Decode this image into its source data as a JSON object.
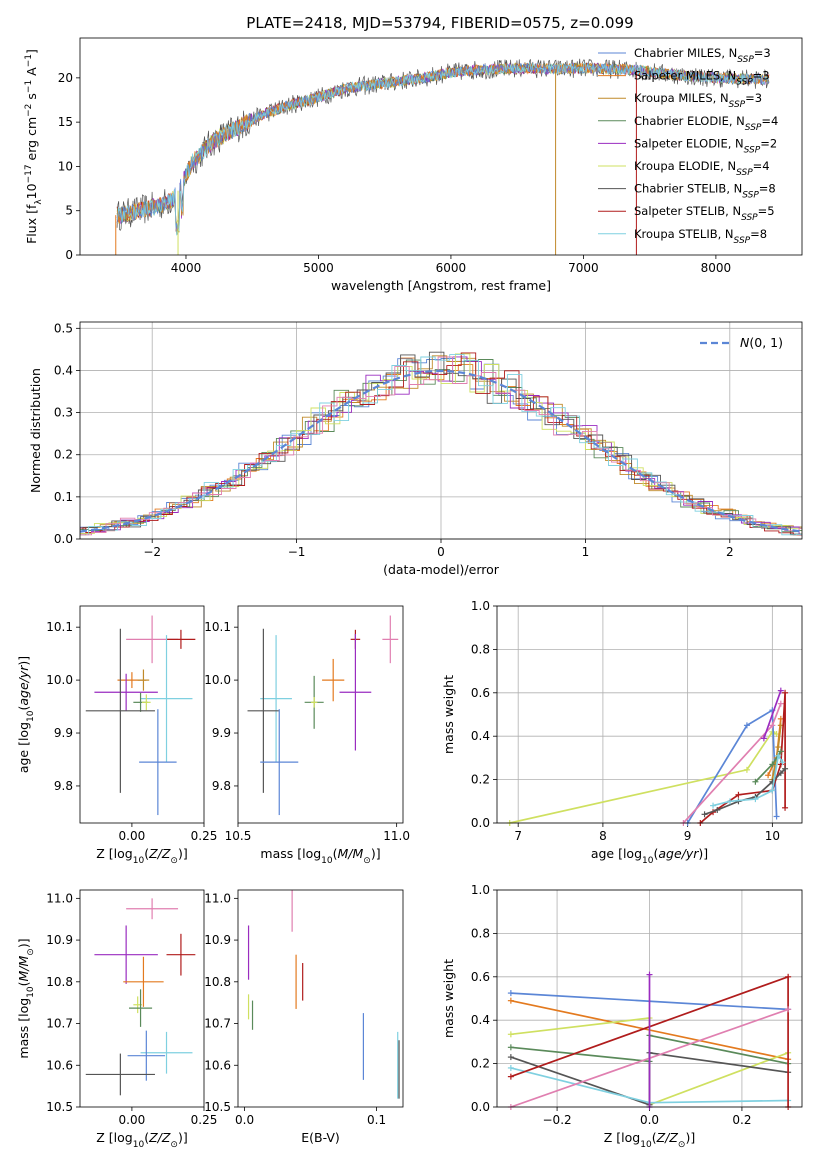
{
  "figure": {
    "title": "PLATE=2418, MJD=53794, FIBERID=0575, z=0.099"
  },
  "colors": {
    "chabrier_miles": "#5b86d6",
    "salpeter_miles": "#e37a1f",
    "kroupa_miles": "#c08a2a",
    "chabrier_elodie": "#5a8a5a",
    "salpeter_elodie": "#9a2cc0",
    "kroupa_elodie": "#cfe060",
    "chabrier_stelib": "#555555",
    "salpeter_stelib": "#b01c1c",
    "kroupa_stelib": "#7fd0e0",
    "pink": "#e07fb0",
    "grid": "#b0b0b0"
  },
  "chart_data": [
    {
      "id": "spectrum",
      "type": "line",
      "xlabel": "wavelength [Angstrom, rest frame]",
      "ylabel": "Flux [f_λ10^{-17} erg cm^{-2} s^{-1} A^{-1}]",
      "xlim": [
        3200,
        8650
      ],
      "ylim": [
        0,
        24.5
      ],
      "xticks": [
        4000,
        5000,
        6000,
        7000,
        8000
      ],
      "yticks": [
        0,
        5,
        10,
        15,
        20
      ],
      "grid": false,
      "legend_position": "top-right",
      "legend": [
        {
          "name": "Chabrier MILES",
          "nssp": "3"
        },
        {
          "name": "Salpeter MILES",
          "nssp": "3"
        },
        {
          "name": "Kroupa MILES",
          "nssp": "3"
        },
        {
          "name": "Chabrier ELODIE",
          "nssp": "4"
        },
        {
          "name": "Salpeter ELODIE",
          "nssp": "2"
        },
        {
          "name": "Kroupa ELODIE",
          "nssp": "4"
        },
        {
          "name": "Chabrier STELIB",
          "nssp": "8"
        },
        {
          "name": "Salpeter STELIB",
          "nssp": "5"
        },
        {
          "name": "Kroupa STELIB",
          "nssp": "8"
        }
      ],
      "continuum": {
        "wavelength": [
          3500,
          3650,
          3800,
          3900,
          3950,
          4050,
          4200,
          4400,
          4600,
          4800,
          5000,
          5200,
          5400,
          5600,
          5800,
          6000,
          6200,
          6400,
          6600,
          6800,
          7000,
          7200,
          7400,
          7600,
          7800,
          8000,
          8200,
          8400
        ],
        "flux": [
          4.5,
          5.0,
          5.6,
          6.3,
          7.5,
          10.5,
          12.8,
          14.5,
          16.0,
          17.0,
          17.8,
          18.8,
          19.2,
          19.6,
          20.0,
          20.6,
          20.9,
          21.0,
          21.1,
          21.0,
          21.1,
          21.0,
          20.9,
          20.5,
          20.2,
          20.0,
          19.9,
          19.8
        ]
      }
    },
    {
      "id": "residual_hist",
      "type": "line",
      "xlabel": "(data-model)/error",
      "ylabel": "Normed distribution",
      "xlim": [
        -2.5,
        2.5
      ],
      "ylim": [
        0,
        0.515
      ],
      "xticks": [
        -2,
        -1,
        0,
        1,
        2
      ],
      "yticks": [
        0.0,
        0.1,
        0.2,
        0.3,
        0.4,
        0.5
      ],
      "grid": true,
      "legend_position": "top-right",
      "legend": [
        "N(0,1)"
      ]
    },
    {
      "id": "age_vs_Z",
      "type": "scatter",
      "xlabel": "Z [log10(Z/Z⊙)]",
      "ylabel": "age [log10(age/yr)]",
      "xlim": [
        -0.18,
        0.25
      ],
      "ylim": [
        9.73,
        10.14
      ],
      "xticks": [
        0.0,
        0.25
      ],
      "xticklabels": [
        "0.00",
        "0.25"
      ],
      "yticks": [
        9.8,
        9.9,
        10.0,
        10.1
      ],
      "grid": false,
      "points": [
        {
          "c": "pink",
          "x": 0.07,
          "y": 10.077,
          "xe": 0.09,
          "ye": 0.045
        },
        {
          "c": "salpeter_stelib",
          "x": 0.17,
          "y": 10.077,
          "xe": 0.05,
          "ye": 0.018
        },
        {
          "c": "salpeter_miles",
          "x": 0.0,
          "y": 10.0,
          "xe": 0.05,
          "ye": 0.015
        },
        {
          "c": "kroupa_miles",
          "x": 0.04,
          "y": 10.0,
          "xe": 0.02,
          "ye": 0.02
        },
        {
          "c": "salpeter_elodie",
          "x": -0.02,
          "y": 9.977,
          "xe": 0.11,
          "ye": 0.035
        },
        {
          "c": "kroupa_stelib",
          "x": 0.12,
          "y": 9.965,
          "xe": 0.09,
          "ye": 0.12
        },
        {
          "c": "chabrier_elodie",
          "x": 0.03,
          "y": 9.958,
          "xe": 0.025,
          "ye": 0.018
        },
        {
          "c": "kroupa_elodie",
          "x": 0.05,
          "y": 9.958,
          "xe": 0.015,
          "ye": 0.015
        },
        {
          "c": "chabrier_stelib",
          "x": -0.04,
          "y": 9.942,
          "xe": 0.12,
          "ye": 0.155
        },
        {
          "c": "chabrier_miles",
          "x": 0.09,
          "y": 9.845,
          "xe": 0.065,
          "ye": 0.1
        }
      ]
    },
    {
      "id": "age_vs_mass",
      "type": "scatter",
      "xlabel": "mass [log10(M/M⊙)]",
      "ylabel": "",
      "xlim": [
        10.5,
        11.02
      ],
      "ylim": [
        9.73,
        10.14
      ],
      "xticks": [
        10.5,
        11.0
      ],
      "xticklabels": [
        "10.5",
        "11.0"
      ],
      "yticks": [
        9.8,
        9.9,
        10.0,
        10.1
      ],
      "grid": false,
      "points": [
        {
          "c": "pink",
          "x": 10.98,
          "y": 10.077,
          "xe": 0.025,
          "ye": 0.045
        },
        {
          "c": "salpeter_stelib",
          "x": 10.87,
          "y": 10.077,
          "xe": 0.015,
          "ye": 0.018
        },
        {
          "c": "salpeter_miles",
          "x": 10.8,
          "y": 10.0,
          "xe": 0.035,
          "ye": 0.04
        },
        {
          "c": "salpeter_elodie",
          "x": 10.87,
          "y": 9.977,
          "xe": 0.05,
          "ye": 0.11
        },
        {
          "c": "kroupa_stelib",
          "x": 10.62,
          "y": 9.965,
          "xe": 0.05,
          "ye": 0.12
        },
        {
          "c": "chabrier_elodie",
          "x": 10.74,
          "y": 9.958,
          "xe": 0.03,
          "ye": 0.05
        },
        {
          "c": "kroupa_elodie",
          "x": 10.74,
          "y": 9.958,
          "xe": 0.01,
          "ye": 0.01
        },
        {
          "c": "chabrier_stelib",
          "x": 10.58,
          "y": 9.942,
          "xe": 0.05,
          "ye": 0.155
        },
        {
          "c": "chabrier_miles",
          "x": 10.63,
          "y": 9.845,
          "xe": 0.06,
          "ye": 0.1
        }
      ]
    },
    {
      "id": "weight_vs_age",
      "type": "line",
      "xlabel": "age [log10(age/yr)]",
      "ylabel": "mass weight",
      "xlim": [
        6.75,
        10.35
      ],
      "ylim": [
        0,
        1.0
      ],
      "xticks": [
        7,
        8,
        9,
        10
      ],
      "yticks": [
        0.0,
        0.2,
        0.4,
        0.6,
        0.8,
        1.0
      ],
      "grid": true,
      "series": [
        {
          "c": "kroupa_elodie",
          "x": [
            6.9,
            9.7,
            10.0,
            10.05
          ],
          "y": [
            0.0,
            0.245,
            0.42,
            0.41
          ]
        },
        {
          "c": "chabrier_miles",
          "x": [
            9.0,
            9.7,
            10.0,
            10.05
          ],
          "y": [
            0.0,
            0.45,
            0.52,
            0.03
          ]
        },
        {
          "c": "pink",
          "x": [
            8.95,
            10.0,
            10.1
          ],
          "y": [
            0.0,
            0.45,
            0.55
          ]
        },
        {
          "c": "salpeter_elodie",
          "x": [
            9.9,
            10.1
          ],
          "y": [
            0.39,
            0.61
          ]
        },
        {
          "c": "salpeter_miles",
          "x": [
            9.95,
            10.05,
            10.1
          ],
          "y": [
            0.22,
            0.3,
            0.48
          ]
        },
        {
          "c": "kroupa_miles",
          "x": [
            10.0,
            10.07,
            10.1
          ],
          "y": [
            0.2,
            0.35,
            0.45
          ]
        },
        {
          "c": "salpeter_stelib",
          "x": [
            9.15,
            9.3,
            9.6,
            10.0,
            10.1,
            10.15,
            10.15
          ],
          "y": [
            0.0,
            0.05,
            0.13,
            0.15,
            0.27,
            0.6,
            0.07
          ]
        },
        {
          "c": "chabrier_stelib",
          "x": [
            9.2,
            9.35,
            9.6,
            9.8,
            10.0,
            10.1,
            10.15
          ],
          "y": [
            0.04,
            0.06,
            0.1,
            0.12,
            0.19,
            0.23,
            0.25
          ]
        },
        {
          "c": "chabrier_elodie",
          "x": [
            9.8,
            10.0,
            10.1
          ],
          "y": [
            0.19,
            0.27,
            0.33
          ]
        },
        {
          "c": "kroupa_stelib",
          "x": [
            9.3,
            9.5,
            9.8,
            10.0,
            10.07,
            10.12
          ],
          "y": [
            0.08,
            0.1,
            0.11,
            0.15,
            0.31,
            0.28
          ]
        }
      ]
    },
    {
      "id": "mass_vs_Z",
      "type": "scatter",
      "xlabel": "Z [log10(Z/Z⊙)]",
      "ylabel": "mass [log10(M/M⊙)]",
      "xlim": [
        -0.18,
        0.25
      ],
      "ylim": [
        10.5,
        11.02
      ],
      "xticks": [
        0.0,
        0.25
      ],
      "xticklabels": [
        "0.00",
        "0.25"
      ],
      "yticks": [
        10.5,
        10.6,
        10.7,
        10.8,
        10.9,
        11.0
      ],
      "grid": false,
      "points": [
        {
          "c": "pink",
          "x": 0.07,
          "y": 10.975,
          "xe": 0.09,
          "ye": 0.025
        },
        {
          "c": "salpeter_elodie",
          "x": -0.02,
          "y": 10.865,
          "xe": 0.11,
          "ye": 0.07
        },
        {
          "c": "salpeter_stelib",
          "x": 0.17,
          "y": 10.865,
          "xe": 0.05,
          "ye": 0.05
        },
        {
          "c": "salpeter_miles",
          "x": 0.04,
          "y": 10.8,
          "xe": 0.07,
          "ye": 0.06
        },
        {
          "c": "kroupa_elodie",
          "x": 0.02,
          "y": 10.745,
          "xe": 0.015,
          "ye": 0.02
        },
        {
          "c": "chabrier_elodie",
          "x": 0.03,
          "y": 10.737,
          "xe": 0.04,
          "ye": 0.045
        },
        {
          "c": "kroupa_stelib",
          "x": 0.12,
          "y": 10.63,
          "xe": 0.09,
          "ye": 0.05
        },
        {
          "c": "chabrier_miles",
          "x": 0.05,
          "y": 10.623,
          "xe": 0.065,
          "ye": 0.06
        },
        {
          "c": "chabrier_stelib",
          "x": -0.04,
          "y": 10.578,
          "xe": 0.12,
          "ye": 0.05
        }
      ]
    },
    {
      "id": "mass_vs_ebv",
      "type": "scatter",
      "xlabel": "E(B-V)",
      "ylabel": "",
      "xlim": [
        -0.005,
        0.12
      ],
      "ylim": [
        10.5,
        11.02
      ],
      "xticks": [
        0.0,
        0.1
      ],
      "xticklabels": [
        "0.0",
        "0.1"
      ],
      "yticks": [
        10.5,
        10.6,
        10.7,
        10.8,
        10.9,
        11.0
      ],
      "grid": false,
      "points": [
        {
          "c": "pink",
          "x": 0.036,
          "y": 10.97,
          "xe": 0.0,
          "ye": 0.05
        },
        {
          "c": "salpeter_elodie",
          "x": 0.003,
          "y": 10.87,
          "xe": 0.0,
          "ye": 0.065
        },
        {
          "c": "salpeter_stelib",
          "x": 0.044,
          "y": 10.8,
          "xe": 0.0,
          "ye": 0.045
        },
        {
          "c": "salpeter_miles",
          "x": 0.039,
          "y": 10.8,
          "xe": 0.0,
          "ye": 0.065
        },
        {
          "c": "kroupa_elodie",
          "x": 0.003,
          "y": 10.74,
          "xe": 0.0,
          "ye": 0.03
        },
        {
          "c": "chabrier_elodie",
          "x": 0.006,
          "y": 10.72,
          "xe": 0.0,
          "ye": 0.035
        },
        {
          "c": "chabrier_miles",
          "x": 0.09,
          "y": 10.645,
          "xe": 0.0,
          "ye": 0.08
        },
        {
          "c": "kroupa_stelib",
          "x": 0.116,
          "y": 10.6,
          "xe": 0.0,
          "ye": 0.08
        },
        {
          "c": "chabrier_stelib",
          "x": 0.117,
          "y": 10.59,
          "xe": 0.0,
          "ye": 0.07
        }
      ]
    },
    {
      "id": "weight_vs_Z",
      "type": "line",
      "xlabel": "Z [log10(Z/Z⊙)]",
      "ylabel": "mass weight",
      "xlim": [
        -0.33,
        0.33
      ],
      "ylim": [
        0,
        1.0
      ],
      "xticks": [
        -0.2,
        0.0,
        0.2
      ],
      "xticklabels": [
        "−0.2",
        "0.0",
        "0.2"
      ],
      "yticks": [
        0.0,
        0.2,
        0.4,
        0.6,
        0.8,
        1.0
      ],
      "grid": true,
      "series": [
        {
          "c": "chabrier_miles",
          "x": [
            -0.3,
            0.3
          ],
          "y": [
            0.525,
            0.45
          ]
        },
        {
          "c": "salpeter_miles",
          "x": [
            -0.3,
            0.3
          ],
          "y": [
            0.49,
            0.22
          ]
        },
        {
          "c": "kroupa_elodie",
          "x": [
            -0.3,
            0.0,
            0.0,
            0.3
          ],
          "y": [
            0.335,
            0.41,
            0.01,
            0.25
          ]
        },
        {
          "c": "chabrier_elodie",
          "x": [
            -0.3,
            0.0,
            0.0,
            0.3
          ],
          "y": [
            0.275,
            0.21,
            0.33,
            0.2
          ]
        },
        {
          "c": "chabrier_stelib",
          "x": [
            -0.3,
            0.0,
            0.0,
            0.3
          ],
          "y": [
            0.23,
            0.01,
            0.25,
            0.16
          ]
        },
        {
          "c": "kroupa_stelib",
          "x": [
            -0.3,
            0.0,
            0.3
          ],
          "y": [
            0.18,
            0.02,
            0.03
          ]
        },
        {
          "c": "salpeter_stelib",
          "x": [
            -0.3,
            0.3,
            0.3
          ],
          "y": [
            0.14,
            0.6,
            0.0
          ]
        },
        {
          "c": "pink",
          "x": [
            -0.3,
            0.3
          ],
          "y": [
            0.0,
            0.45
          ]
        },
        {
          "c": "salpeter_elodie",
          "x": [
            0.0,
            0.0
          ],
          "y": [
            0.0,
            0.61
          ]
        }
      ]
    }
  ]
}
